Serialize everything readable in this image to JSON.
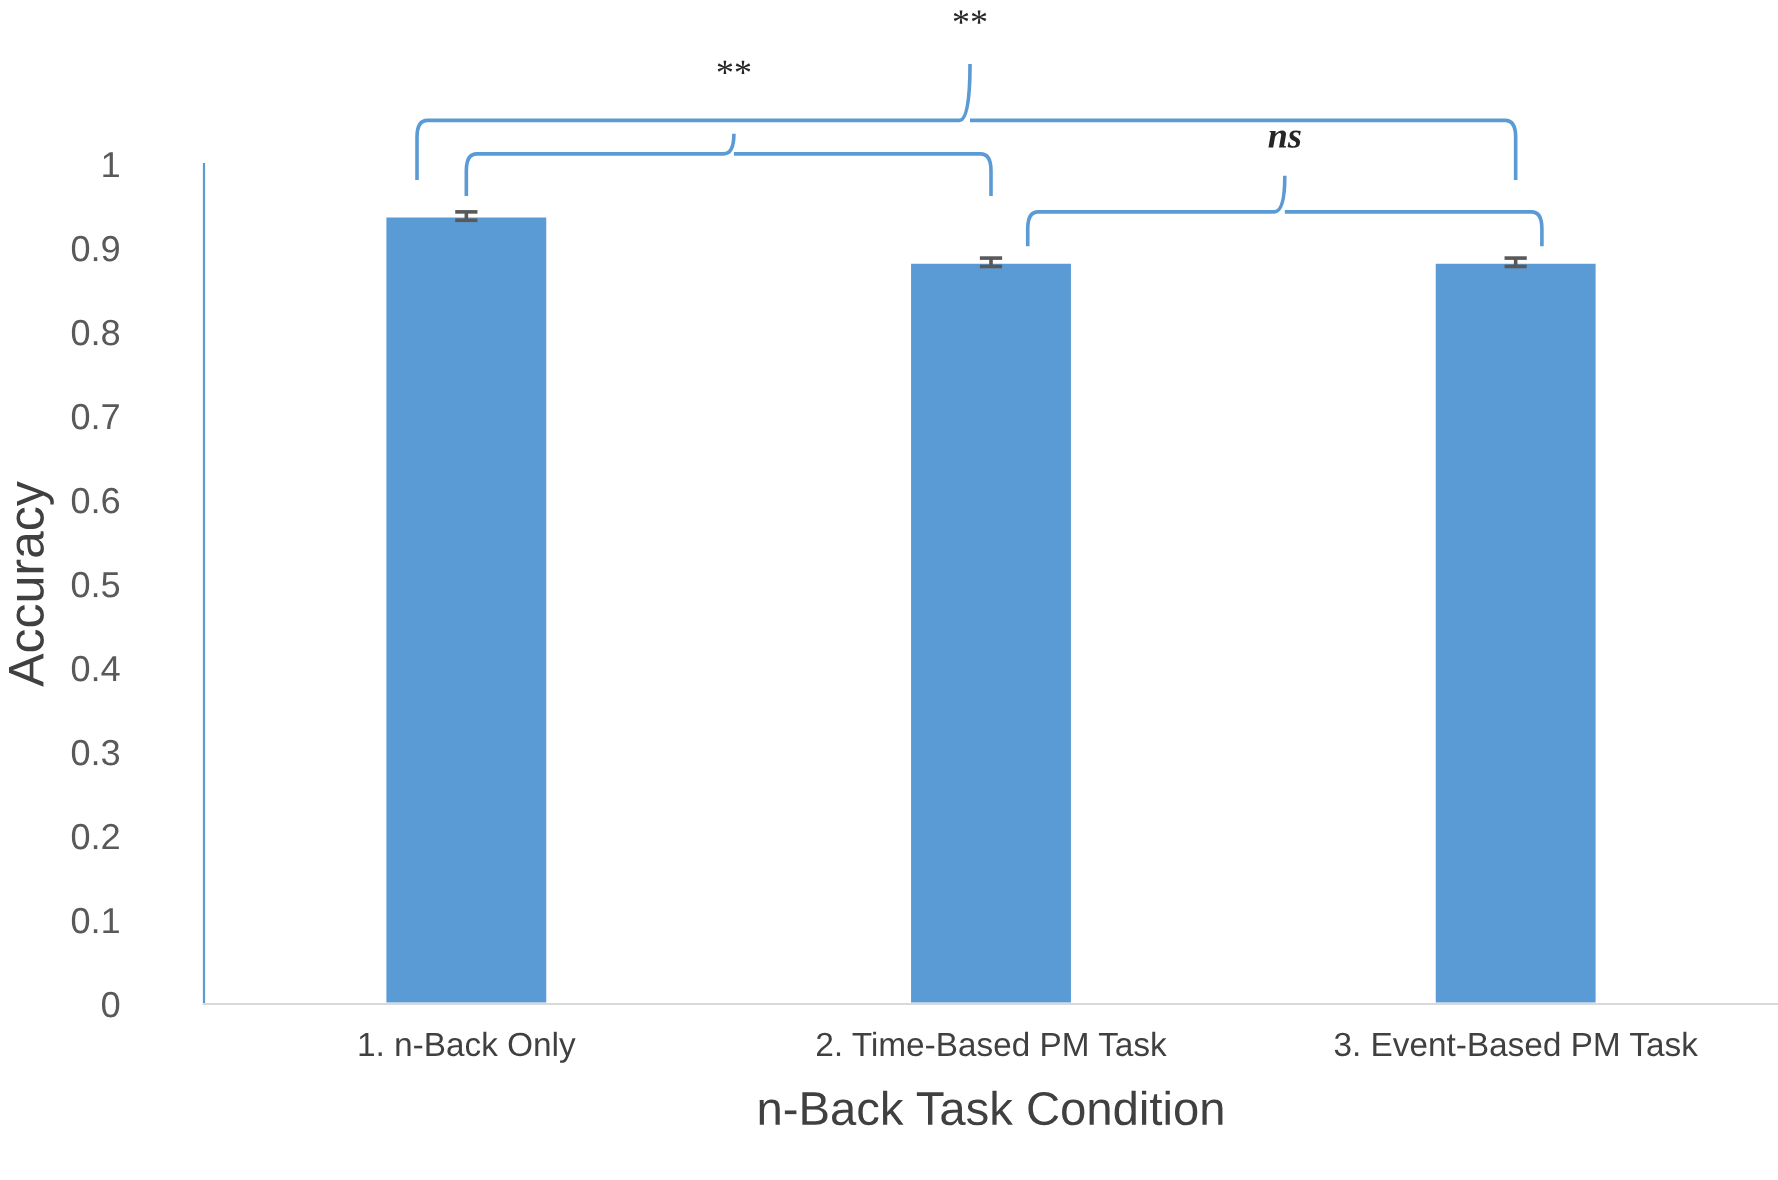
{
  "chart_data": {
    "type": "bar",
    "xlabel": "n-Back Task Condition",
    "ylabel": "Accuracy",
    "categories": [
      "1. n-Back Only",
      "2. Time-Based PM Task",
      "3. Event-Based PM Task"
    ],
    "values": [
      0.938,
      0.883,
      0.883
    ],
    "errors": [
      0.005,
      0.005,
      0.005
    ],
    "color": "#5b9bd5",
    "ylim": [
      0,
      1
    ],
    "yticks": [
      0,
      0.1,
      0.2,
      0.3,
      0.4,
      0.5,
      0.6,
      0.7,
      0.8,
      0.9,
      1
    ],
    "grid": false,
    "legend": false,
    "annotations": [
      "**",
      "**",
      "ns"
    ]
  }
}
